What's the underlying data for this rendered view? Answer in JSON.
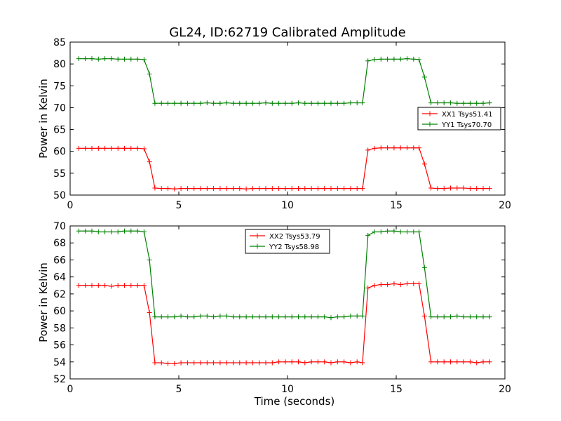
{
  "title": "GL24, ID:62719 Calibrated Amplitude",
  "chart_data": [
    {
      "type": "line",
      "ylabel": "Power in Kelvin",
      "xlabel": "",
      "xlim": [
        0,
        20
      ],
      "ylim": [
        50,
        85
      ],
      "xticks": [
        0,
        5,
        10,
        15,
        20
      ],
      "yticks": [
        50,
        55,
        60,
        65,
        70,
        75,
        80,
        85
      ],
      "grid": false,
      "legend_position": "center-right",
      "x": [
        0.4,
        0.7,
        1.0,
        1.3,
        1.6,
        1.9,
        2.2,
        2.5,
        2.8,
        3.1,
        3.4,
        3.65,
        3.9,
        4.2,
        4.5,
        4.8,
        5.1,
        5.4,
        5.7,
        6.0,
        6.3,
        6.6,
        6.9,
        7.2,
        7.5,
        7.8,
        8.1,
        8.4,
        8.7,
        9.0,
        9.3,
        9.6,
        9.9,
        10.2,
        10.5,
        10.8,
        11.1,
        11.4,
        11.7,
        12.0,
        12.3,
        12.6,
        12.9,
        13.2,
        13.45,
        13.7,
        14.0,
        14.3,
        14.6,
        14.9,
        15.2,
        15.5,
        15.8,
        16.05,
        16.3,
        16.6,
        16.9,
        17.2,
        17.5,
        17.8,
        18.1,
        18.4,
        18.7,
        19.0,
        19.3
      ],
      "series": [
        {
          "name": "XX1 Tsys51.41",
          "color": "#ff0000",
          "values": [
            60.7,
            60.7,
            60.7,
            60.7,
            60.7,
            60.7,
            60.7,
            60.7,
            60.7,
            60.7,
            60.6,
            57.6,
            51.6,
            51.5,
            51.5,
            51.4,
            51.5,
            51.5,
            51.5,
            51.5,
            51.5,
            51.5,
            51.5,
            51.5,
            51.5,
            51.5,
            51.4,
            51.5,
            51.5,
            51.5,
            51.5,
            51.5,
            51.5,
            51.5,
            51.5,
            51.5,
            51.5,
            51.5,
            51.5,
            51.5,
            51.5,
            51.5,
            51.5,
            51.5,
            51.5,
            60.3,
            60.7,
            60.8,
            60.8,
            60.8,
            60.8,
            60.8,
            60.8,
            60.8,
            57.1,
            51.6,
            51.5,
            51.5,
            51.6,
            51.6,
            51.6,
            51.5,
            51.5,
            51.5,
            51.5
          ]
        },
        {
          "name": "YY1 Tsys70.70",
          "color": "#008000",
          "values": [
            81.2,
            81.2,
            81.2,
            81.1,
            81.2,
            81.2,
            81.1,
            81.1,
            81.1,
            81.1,
            81.0,
            77.7,
            71.0,
            71.0,
            71.0,
            71.0,
            71.0,
            71.0,
            71.0,
            71.0,
            71.1,
            71.0,
            71.0,
            71.1,
            71.0,
            71.0,
            71.0,
            71.0,
            71.0,
            71.1,
            71.0,
            71.0,
            71.0,
            71.0,
            71.1,
            71.0,
            71.0,
            71.0,
            71.0,
            71.0,
            71.0,
            71.0,
            71.1,
            71.1,
            71.1,
            80.7,
            81.0,
            81.1,
            81.1,
            81.1,
            81.1,
            81.2,
            81.1,
            81.0,
            77.0,
            71.1,
            71.1,
            71.1,
            71.1,
            71.0,
            71.0,
            71.0,
            71.0,
            71.0,
            71.1
          ]
        }
      ]
    },
    {
      "type": "line",
      "ylabel": "Power in Kelvin",
      "xlabel": "Time (seconds)",
      "xlim": [
        0,
        20
      ],
      "ylim": [
        52,
        70
      ],
      "xticks": [
        0,
        5,
        10,
        15,
        20
      ],
      "yticks": [
        52,
        54,
        56,
        58,
        60,
        62,
        64,
        66,
        68,
        70
      ],
      "grid": false,
      "legend_position": "top-center",
      "x": [
        0.4,
        0.7,
        1.0,
        1.3,
        1.6,
        1.9,
        2.2,
        2.5,
        2.8,
        3.1,
        3.4,
        3.65,
        3.9,
        4.2,
        4.5,
        4.8,
        5.1,
        5.4,
        5.7,
        6.0,
        6.3,
        6.6,
        6.9,
        7.2,
        7.5,
        7.8,
        8.1,
        8.4,
        8.7,
        9.0,
        9.3,
        9.6,
        9.9,
        10.2,
        10.5,
        10.8,
        11.1,
        11.4,
        11.7,
        12.0,
        12.3,
        12.6,
        12.9,
        13.2,
        13.45,
        13.7,
        14.0,
        14.3,
        14.6,
        14.9,
        15.2,
        15.5,
        15.8,
        16.05,
        16.3,
        16.6,
        16.9,
        17.2,
        17.5,
        17.8,
        18.1,
        18.4,
        18.7,
        19.0,
        19.3
      ],
      "series": [
        {
          "name": "XX2 Tsys53.79",
          "color": "#ff0000",
          "values": [
            63.0,
            63.0,
            63.0,
            63.0,
            63.0,
            62.9,
            63.0,
            63.0,
            63.0,
            63.0,
            63.0,
            59.8,
            53.9,
            53.9,
            53.8,
            53.8,
            53.9,
            53.9,
            53.9,
            53.9,
            53.9,
            53.9,
            53.9,
            53.9,
            53.9,
            53.9,
            53.9,
            53.9,
            53.9,
            53.9,
            53.9,
            54.0,
            54.0,
            54.0,
            54.0,
            53.9,
            54.0,
            54.0,
            54.0,
            53.9,
            54.0,
            54.0,
            53.9,
            54.0,
            53.9,
            62.7,
            63.0,
            63.1,
            63.1,
            63.2,
            63.1,
            63.2,
            63.2,
            63.2,
            59.4,
            54.0,
            54.0,
            54.0,
            54.0,
            54.0,
            54.0,
            54.0,
            53.9,
            54.0,
            54.0
          ]
        },
        {
          "name": "YY2 Tsys58.98",
          "color": "#008000",
          "values": [
            69.4,
            69.4,
            69.4,
            69.3,
            69.3,
            69.3,
            69.3,
            69.4,
            69.4,
            69.4,
            69.3,
            66.0,
            59.3,
            59.3,
            59.3,
            59.3,
            59.4,
            59.3,
            59.3,
            59.4,
            59.4,
            59.3,
            59.4,
            59.4,
            59.3,
            59.3,
            59.3,
            59.3,
            59.3,
            59.3,
            59.3,
            59.3,
            59.3,
            59.3,
            59.3,
            59.3,
            59.3,
            59.3,
            59.3,
            59.2,
            59.3,
            59.3,
            59.4,
            59.4,
            59.4,
            68.9,
            69.3,
            69.3,
            69.4,
            69.4,
            69.3,
            69.3,
            69.3,
            69.3,
            65.1,
            59.3,
            59.3,
            59.3,
            59.3,
            59.4,
            59.3,
            59.3,
            59.3,
            59.3,
            59.3
          ]
        }
      ]
    }
  ]
}
